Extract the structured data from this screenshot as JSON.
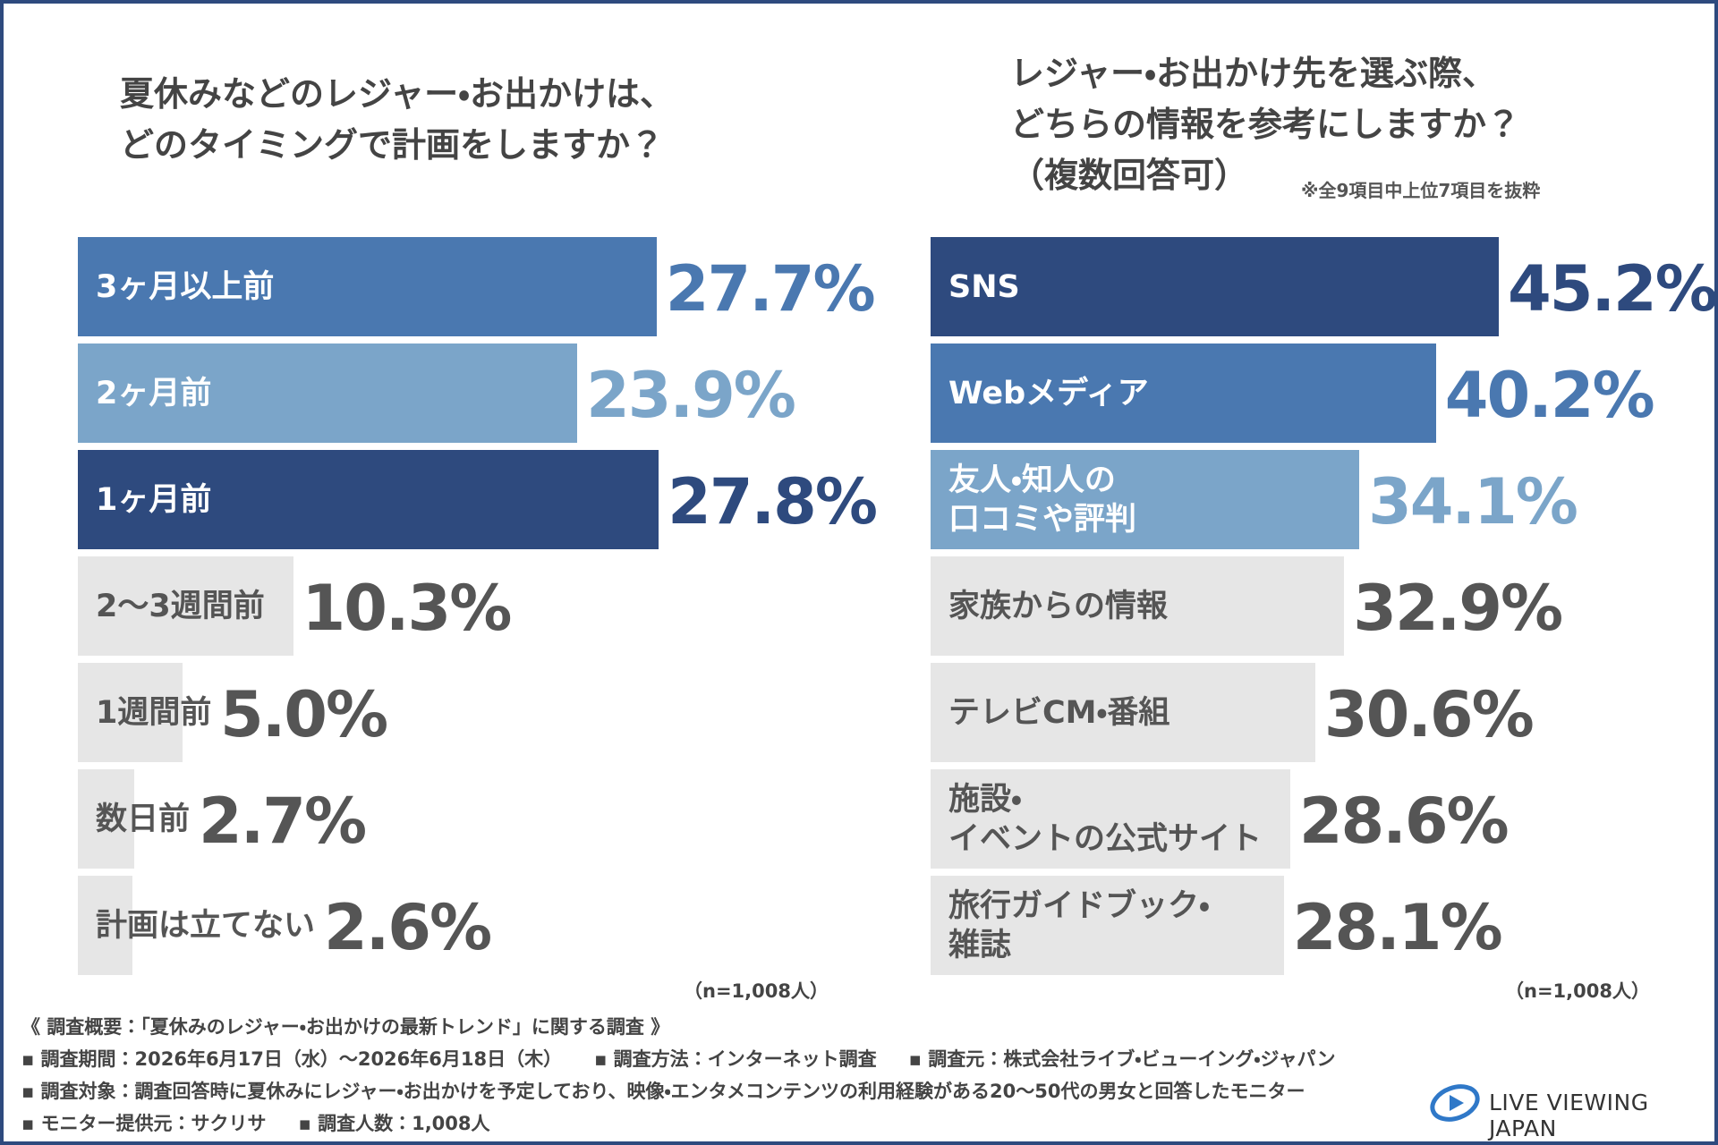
{
  "chart_data": [
    {
      "type": "bar",
      "orientation": "horizontal",
      "title": "夏休みなどのレジャー・お出かけは、\nどのタイミングで計画をしますか？",
      "categories": [
        "3ヶ月以上前",
        "2ヶ月前",
        "1ヶ月前",
        "2〜3週間前",
        "1週間前",
        "数日前",
        "計画は立てない"
      ],
      "values": [
        27.7,
        23.9,
        27.8,
        10.3,
        5.0,
        2.7,
        2.6
      ],
      "value_labels": [
        "27.7%",
        "23.9%",
        "27.8%",
        "10.3%",
        "5.0%",
        "2.7%",
        "2.6%"
      ],
      "colors": [
        "#4a78b0",
        "#7ba5c9",
        "#2e4a7e",
        "#e6e6e6",
        "#e6e6e6",
        "#e6e6e6",
        "#e6e6e6"
      ],
      "xlim": [
        0,
        40
      ],
      "sample_size": "（n=1,008人）"
    },
    {
      "type": "bar",
      "orientation": "horizontal",
      "title": "レジャー・お出かけ先を選ぶ際、\nどちらの情報を参考にしますか？\n（複数回答可）",
      "note": "※全9項目中上位7項目を抜粋",
      "categories": [
        "SNS",
        "Webメディア",
        "友人・知人の\n口コミや評判",
        "家族からの情報",
        "テレビCM・番組",
        "施設・\nイベントの公式サイト",
        "旅行ガイドブック・\n雑誌"
      ],
      "values": [
        45.2,
        40.2,
        34.1,
        32.9,
        30.6,
        28.6,
        28.1
      ],
      "value_labels": [
        "45.2%",
        "40.2%",
        "34.1%",
        "32.9%",
        "30.6%",
        "28.6%",
        "28.1%"
      ],
      "colors": [
        "#2e4a7e",
        "#4a78b0",
        "#7ba5c9",
        "#e6e6e6",
        "#e6e6e6",
        "#e6e6e6",
        "#e6e6e6"
      ],
      "xlim": [
        0,
        60
      ],
      "sample_size": "（n=1,008人）"
    }
  ],
  "footer": {
    "heading": "《 調査概要：「夏休みのレジャー・お出かけの最新トレンド」に関する調査 》",
    "lines": [
      [
        "調査期間：2026年6月17日（水）～2026年6月18日（木）",
        "調査方法：インターネット調査",
        "調査元：株式会社ライブ・ビューイング・ジャパン"
      ],
      [
        "調査対象：調査回答時に夏休みにレジャー・お出かけを予定しており、映像・エンタメコンテンツの利用経験がある20～50代の男女と回答したモニター"
      ],
      [
        "モニター提供元：サクリサ",
        "調査人数：1,008人"
      ]
    ]
  },
  "logo": "LIVE VIEWING JAPAN"
}
